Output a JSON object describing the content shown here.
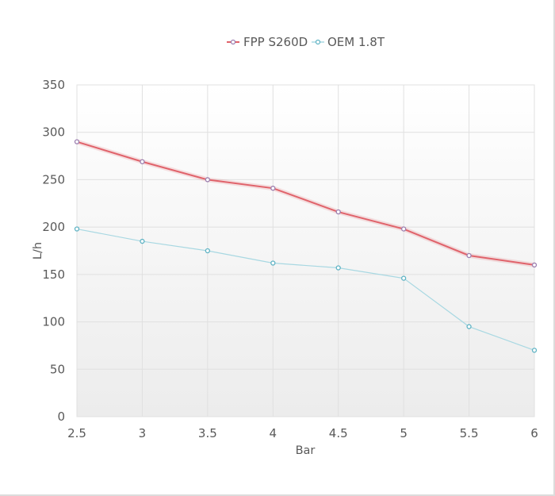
{
  "chart_data": {
    "type": "line",
    "title": "",
    "xlabel": "Bar",
    "ylabel": "L/h",
    "x": [
      2.5,
      3,
      3.5,
      4,
      4.5,
      5,
      5.5,
      6
    ],
    "x_tick_labels": [
      "2.5",
      "3",
      "3.5",
      "4",
      "4.5",
      "5",
      "5.5",
      "6"
    ],
    "y_tick_labels": [
      "0",
      "50",
      "100",
      "150",
      "200",
      "250",
      "300",
      "350"
    ],
    "ylim": [
      0,
      350
    ],
    "xlim": [
      2.5,
      6
    ],
    "grid": true,
    "legend_position": "top",
    "series": [
      {
        "name": "FPP S260D",
        "color": "#e0636b",
        "marker_color": "#9b7fb0",
        "values": [
          290,
          269,
          250,
          241,
          216,
          198,
          170,
          160
        ]
      },
      {
        "name": "OEM 1.8T",
        "color": "#a8d8e2",
        "marker_color": "#5fb3c4",
        "values": [
          198,
          185,
          175,
          162,
          157,
          146,
          95,
          70
        ]
      }
    ]
  }
}
